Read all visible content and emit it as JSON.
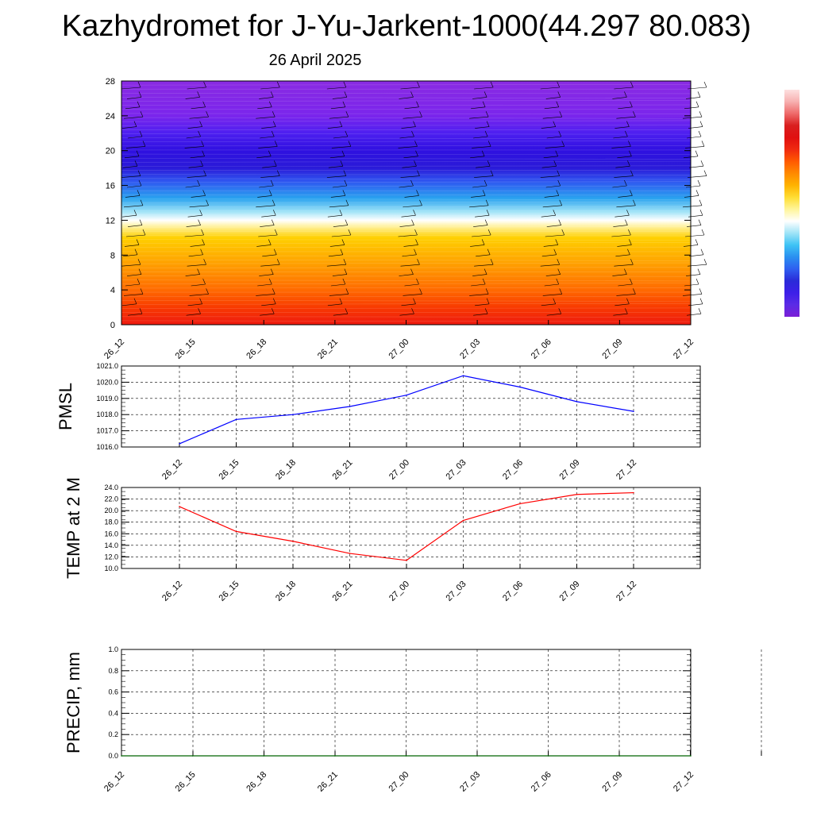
{
  "title": "Kazhydromet for J-Yu-Jarkent-1000(44.297 80.083)",
  "subtitle": "26 April 2025",
  "chart_data": [
    {
      "type": "heatmap",
      "name": "cross-section",
      "x_ticks": [
        "26_12",
        "26_15",
        "26_18",
        "26_21",
        "27_00",
        "27_03",
        "27_06",
        "27_09",
        "27_12"
      ],
      "y_ticks": [
        "0",
        "4",
        "8",
        "12",
        "16",
        "20",
        "24",
        "28"
      ],
      "ylim": [
        0,
        28
      ],
      "colorbar": [
        "#7b1fd6",
        "#5b2be6",
        "#3d1fe8",
        "#2a2ad8",
        "#2f5ff0",
        "#2a8ff0",
        "#3ec3f5",
        "#9fe4f7",
        "#ffffff",
        "#fff59a",
        "#ffdd33",
        "#ffb300",
        "#ff8a00",
        "#ff5a00",
        "#f02a10",
        "#e01010",
        "#d91f1f",
        "#ee6a6a",
        "#f7b0b0",
        "#fde0e0"
      ],
      "color_levels": [
        {
          "y": 28,
          "color": "#8a2be2"
        },
        {
          "y": 24,
          "color": "#7a25ec"
        },
        {
          "y": 22,
          "color": "#4d1ff0"
        },
        {
          "y": 20,
          "color": "#2f10e0"
        },
        {
          "y": 18,
          "color": "#2a1ad8"
        },
        {
          "y": 16.5,
          "color": "#2f55f0"
        },
        {
          "y": 14.5,
          "color": "#2aa3ef"
        },
        {
          "y": 13,
          "color": "#9fe3f7"
        },
        {
          "y": 12,
          "color": "#ffffff"
        },
        {
          "y": 11.3,
          "color": "#fff2a0"
        },
        {
          "y": 10,
          "color": "#ffd000"
        },
        {
          "y": 7,
          "color": "#ffa000"
        },
        {
          "y": 4,
          "color": "#ff6a00"
        },
        {
          "y": 2,
          "color": "#f83a00"
        },
        {
          "y": 0,
          "color": "#ee1a10"
        }
      ],
      "grid": false
    },
    {
      "type": "line",
      "ylabel": "PMSL",
      "categories": [
        "26_12",
        "26_15",
        "26_18",
        "26_21",
        "27_00",
        "27_03",
        "27_06",
        "27_09",
        "27_12"
      ],
      "series": [
        {
          "values": [
            1016.2,
            1017.7,
            1018.0,
            1018.5,
            1019.2,
            1020.4,
            1019.7,
            1018.8,
            1018.2
          ],
          "color": "#0000ff"
        }
      ],
      "ylim": [
        1016.0,
        1021.0
      ],
      "y_ticks": [
        "1016.0",
        "1017.0",
        "1018.0",
        "1019.0",
        "1020.0",
        "1021.0"
      ],
      "grid": true
    },
    {
      "type": "line",
      "ylabel": "TEMP at 2 M",
      "categories": [
        "26_12",
        "26_15",
        "26_18",
        "26_21",
        "27_00",
        "27_03",
        "27_06",
        "27_09",
        "27_12"
      ],
      "series": [
        {
          "values": [
            20.7,
            16.4,
            14.7,
            12.6,
            11.4,
            18.3,
            21.2,
            22.8,
            23.1
          ],
          "color": "#ff0000"
        }
      ],
      "ylim": [
        10.0,
        24.0
      ],
      "y_ticks": [
        "10.0",
        "12.0",
        "14.0",
        "16.0",
        "18.0",
        "20.0",
        "22.0",
        "24.0"
      ],
      "grid": true
    },
    {
      "type": "line",
      "ylabel": "PRECIP, mm",
      "categories": [
        "26_12",
        "26_15",
        "26_18",
        "26_21",
        "27_00",
        "27_03",
        "27_06",
        "27_09",
        "27_12"
      ],
      "series": [
        {
          "values": [
            0,
            0,
            0,
            0,
            0,
            0,
            0,
            0,
            0
          ],
          "color": "#006400"
        }
      ],
      "ylim": [
        0.0,
        1.0
      ],
      "y_ticks": [
        "0.0",
        "0.2",
        "0.4",
        "0.6",
        "0.8",
        "1.0"
      ],
      "grid": true
    }
  ]
}
